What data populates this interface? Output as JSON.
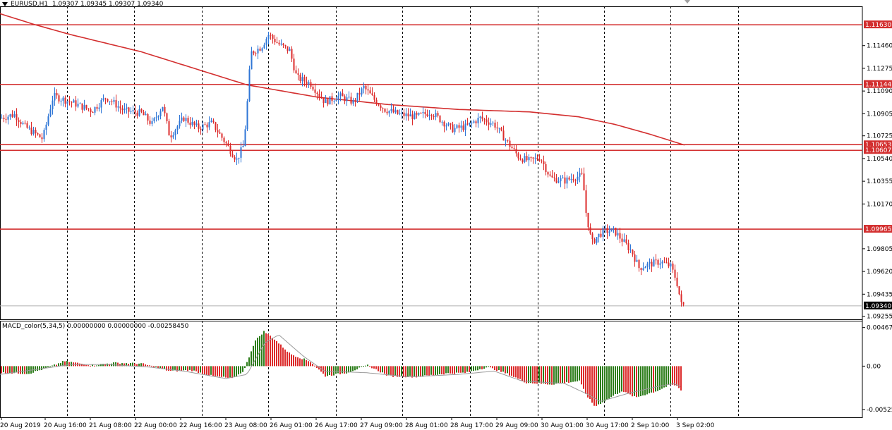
{
  "header": {
    "symbol": "EURUSD,H1",
    "ohlc": "1.09307 1.09345 1.09307 1.09340"
  },
  "macd": {
    "label": "MACD_color(5,34,5) 0.00000000 0.00000000 -0.00258450",
    "ticks": [
      "0.004675",
      "0.00",
      "-0.00525"
    ]
  },
  "price_axis": {
    "ticks": [
      "1.11460",
      "1.11275",
      "1.11090",
      "1.10905",
      "1.10725",
      "1.10540",
      "1.10355",
      "1.10170",
      "1.09805",
      "1.09620",
      "1.09435",
      "1.09255"
    ],
    "min": 1.0923,
    "max": 1.1178
  },
  "levels": [
    {
      "label": "1.11630",
      "value": 1.1163
    },
    {
      "label": "1.11144",
      "value": 1.11144
    },
    {
      "label": "1.10653",
      "value": 1.10653
    },
    {
      "label": "1.10607",
      "value": 1.10607
    },
    {
      "label": "1.09965",
      "value": 1.09965
    }
  ],
  "current_price": {
    "label": "1.09340",
    "value": 1.0934
  },
  "time_axis": {
    "labels": [
      "20 Aug 2019",
      "20 Aug 16:00",
      "21 Aug 08:00",
      "22 Aug 00:00",
      "22 Aug 16:00",
      "23 Aug 08:00",
      "26 Aug 01:00",
      "26 Aug 17:00",
      "27 Aug 09:00",
      "28 Aug 01:00",
      "28 Aug 17:00",
      "29 Aug 09:00",
      "30 Aug 01:00",
      "30 Aug 17:00",
      "2 Sep 10:00",
      "3 Sep 02:00"
    ]
  },
  "colors": {
    "bull": "#2f76d6",
    "bear": "#dc2b2b",
    "level": "#d32f2f",
    "ma": "#d32f2f",
    "hist_up": "#2d7d1b",
    "hist_down": "#dc2b2b",
    "signal": "#999999",
    "grid": "#000000"
  },
  "chart_data": {
    "type": "candlestick",
    "series": [
      {
        "name": "close",
        "x": [
          "20 Aug 2019",
          "20 Aug 16:00",
          "21 Aug 08:00",
          "22 Aug 00:00",
          "22 Aug 16:00",
          "23 Aug 08:00",
          "26 Aug 01:00",
          "26 Aug 17:00",
          "27 Aug 09:00",
          "28 Aug 01:00",
          "28 Aug 17:00",
          "29 Aug 09:00",
          "30 Aug 01:00",
          "30 Aug 17:00",
          "2 Sep 10:00",
          "3 Sep 02:00"
        ],
        "values": [
          1.1089,
          1.1104,
          1.1101,
          1.1092,
          1.1082,
          1.1066,
          1.1149,
          1.1105,
          1.1101,
          1.109,
          1.1084,
          1.1052,
          1.104,
          1.0988,
          1.0968,
          1.0934
        ]
      }
    ],
    "waypoints": [
      [
        0,
        1.1087
      ],
      [
        20,
        1.109
      ],
      [
        35,
        1.108
      ],
      [
        60,
        1.107
      ],
      [
        75,
        1.1105
      ],
      [
        100,
        1.11
      ],
      [
        130,
        1.1093
      ],
      [
        150,
        1.1104
      ],
      [
        175,
        1.1093
      ],
      [
        200,
        1.1091
      ],
      [
        215,
        1.1082
      ],
      [
        230,
        1.1097
      ],
      [
        240,
        1.1072
      ],
      [
        260,
        1.1087
      ],
      [
        280,
        1.1079
      ],
      [
        300,
        1.1083
      ],
      [
        320,
        1.1066
      ],
      [
        335,
        1.1053
      ],
      [
        345,
        1.1065
      ],
      [
        350,
        1.11
      ],
      [
        355,
        1.114
      ],
      [
        370,
        1.1145
      ],
      [
        380,
        1.1155
      ],
      [
        395,
        1.1147
      ],
      [
        410,
        1.1142
      ],
      [
        420,
        1.112
      ],
      [
        440,
        1.1115
      ],
      [
        460,
        1.11
      ],
      [
        480,
        1.1105
      ],
      [
        500,
        1.11
      ],
      [
        515,
        1.1112
      ],
      [
        530,
        1.1102
      ],
      [
        545,
        1.1094
      ],
      [
        565,
        1.109
      ],
      [
        590,
        1.1088
      ],
      [
        610,
        1.1092
      ],
      [
        625,
        1.1085
      ],
      [
        640,
        1.1078
      ],
      [
        660,
        1.108
      ],
      [
        680,
        1.1087
      ],
      [
        700,
        1.1082
      ],
      [
        715,
        1.107
      ],
      [
        735,
        1.1055
      ],
      [
        750,
        1.1052
      ],
      [
        765,
        1.1055
      ],
      [
        780,
        1.1038
      ],
      [
        800,
        1.1036
      ],
      [
        815,
        1.1039
      ],
      [
        825,
        1.104
      ],
      [
        830,
        1.101
      ],
      [
        838,
        1.0985
      ],
      [
        845,
        1.099
      ],
      [
        855,
        1.0995
      ],
      [
        870,
        1.0995
      ],
      [
        885,
        1.0985
      ],
      [
        895,
        1.0978
      ],
      [
        905,
        1.0965
      ],
      [
        920,
        1.0968
      ],
      [
        935,
        1.097
      ],
      [
        950,
        1.0966
      ],
      [
        958,
        1.0955
      ],
      [
        965,
        1.0935
      ],
      [
        970,
        1.0934
      ]
    ],
    "ma_waypoints": [
      [
        0,
        1.1172
      ],
      [
        50,
        1.1163
      ],
      [
        100,
        1.1155
      ],
      [
        200,
        1.1141
      ],
      [
        300,
        1.1123
      ],
      [
        350,
        1.1114
      ],
      [
        450,
        1.1104
      ],
      [
        550,
        1.1098
      ],
      [
        650,
        1.1094
      ],
      [
        750,
        1.1092
      ],
      [
        820,
        1.1088
      ],
      [
        870,
        1.1082
      ],
      [
        920,
        1.1074
      ],
      [
        970,
        1.1065
      ]
    ],
    "macd_histogram": [
      [
        0,
        -0.0008
      ],
      [
        40,
        -0.0009
      ],
      [
        70,
        -0.0001
      ],
      [
        90,
        0.0006
      ],
      [
        130,
        0.0001
      ],
      [
        160,
        0.0004
      ],
      [
        200,
        0.0003
      ],
      [
        240,
        -0.0006
      ],
      [
        270,
        -0.0005
      ],
      [
        300,
        -0.0012
      ],
      [
        330,
        -0.0015
      ],
      [
        345,
        -0.0005
      ],
      [
        360,
        0.003
      ],
      [
        373,
        0.0042
      ],
      [
        385,
        0.0035
      ],
      [
        410,
        0.0015
      ],
      [
        440,
        0.0005
      ],
      [
        460,
        -0.0012
      ],
      [
        490,
        -0.0008
      ],
      [
        520,
        0.0001
      ],
      [
        550,
        -0.0012
      ],
      [
        590,
        -0.0013
      ],
      [
        630,
        -0.0009
      ],
      [
        660,
        -0.0008
      ],
      [
        690,
        -0.0001
      ],
      [
        720,
        -0.001
      ],
      [
        745,
        -0.002
      ],
      [
        780,
        -0.0022
      ],
      [
        820,
        -0.0018
      ],
      [
        830,
        -0.0035
      ],
      [
        842,
        -0.0049
      ],
      [
        860,
        -0.004
      ],
      [
        880,
        -0.003
      ],
      [
        900,
        -0.0038
      ],
      [
        930,
        -0.003
      ],
      [
        950,
        -0.0022
      ],
      [
        960,
        -0.0025
      ],
      [
        966,
        -0.0032
      ]
    ],
    "macd_signal": [
      [
        0,
        -0.001
      ],
      [
        60,
        -0.0003
      ],
      [
        100,
        0.0002
      ],
      [
        150,
        0.0002
      ],
      [
        210,
        -0.0001
      ],
      [
        260,
        -0.0006
      ],
      [
        320,
        -0.0015
      ],
      [
        350,
        -0.001
      ],
      [
        375,
        0.0028
      ],
      [
        395,
        0.0038
      ],
      [
        430,
        0.0012
      ],
      [
        460,
        -0.0006
      ],
      [
        520,
        -0.0008
      ],
      [
        580,
        -0.0013
      ],
      [
        650,
        -0.001
      ],
      [
        700,
        -0.0006
      ],
      [
        740,
        -0.0018
      ],
      [
        800,
        -0.0021
      ],
      [
        835,
        -0.0035
      ],
      [
        850,
        -0.0043
      ],
      [
        890,
        -0.0033
      ],
      [
        930,
        -0.0025
      ],
      [
        955,
        -0.0021
      ],
      [
        966,
        -0.0026
      ]
    ],
    "macd_range": [
      -0.0062,
      0.0055
    ],
    "ylim": [
      1.0923,
      1.1178
    ],
    "xlabel": "",
    "ylabel": ""
  }
}
